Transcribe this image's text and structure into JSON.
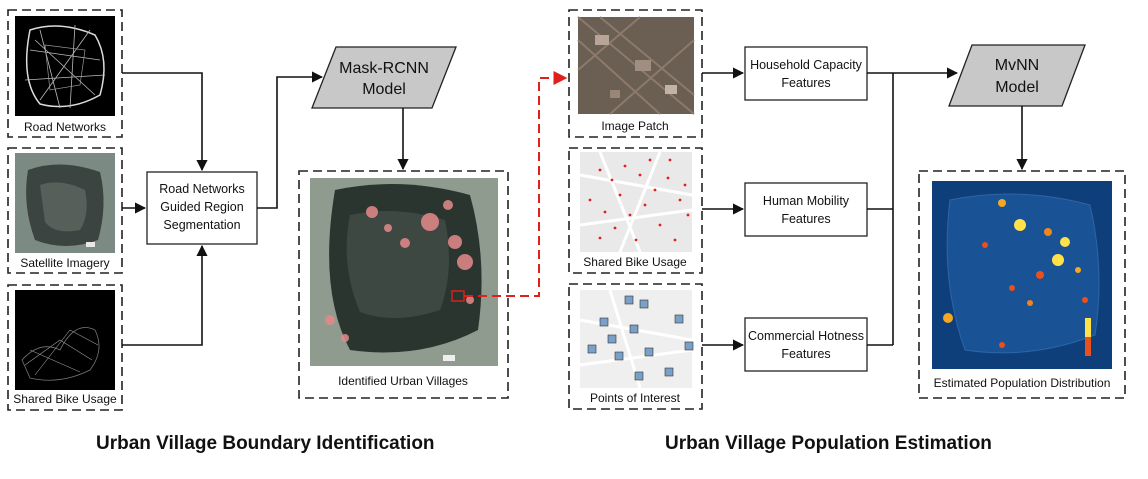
{
  "inputs": {
    "road_networks": "Road Networks",
    "satellite_imagery": "Satellite Imagery",
    "shared_bike_usage_left": "Shared Bike Usage"
  },
  "segmentation_box": [
    "Road Networks",
    "Guided Region",
    "Segmentation"
  ],
  "mask_rcnn": [
    "Mask-RCNN",
    "Model"
  ],
  "identified_urban_villages": "Identified Urban Villages",
  "right_inputs": {
    "image_patch": "Image Patch",
    "shared_bike_usage": "Shared Bike Usage",
    "points_of_interest": "Points of Interest"
  },
  "features": {
    "household": [
      "Household Capacity",
      "Features"
    ],
    "mobility": [
      "Human Mobility",
      "Features"
    ],
    "commercial": [
      "Commercial Hotness",
      "Features"
    ]
  },
  "mvnn": [
    "MvNN",
    "Model"
  ],
  "estimated_population": "Estimated Population Distribution",
  "sections": {
    "left": "Urban Village Boundary Identification",
    "right": "Urban Village Population Estimation"
  },
  "colors": {
    "red_dashed_arrow": "#e0201b",
    "model_fill": "#c8c8c8",
    "map_dark": "#1f2a26",
    "population_map_bg": "#0f3f7a"
  }
}
